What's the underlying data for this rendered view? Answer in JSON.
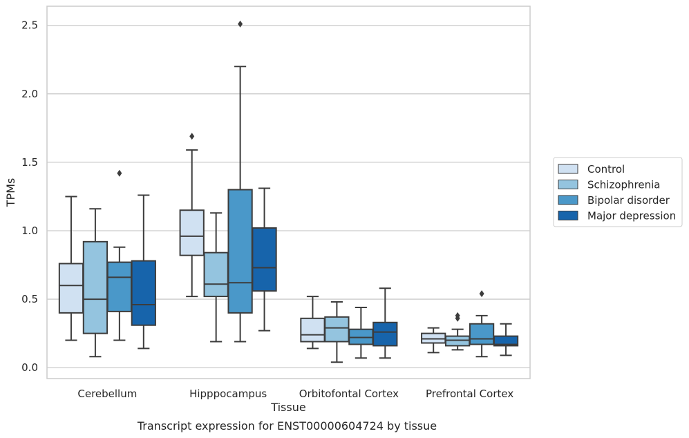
{
  "chart_data": {
    "type": "box",
    "title": "",
    "xlabel": "Tissue",
    "ylabel": "TPMs",
    "caption": "Transcript expression for ENST00000604724 by tissue",
    "ylim": [
      -0.08,
      2.64
    ],
    "yticks": [
      "0.0",
      "0.5",
      "1.0",
      "1.5",
      "2.0",
      "2.5"
    ],
    "ytick_values": [
      0.0,
      0.5,
      1.0,
      1.5,
      2.0,
      2.5
    ],
    "grid": true,
    "legend_position": "right",
    "categories": [
      "Cerebellum",
      "Hipppocampus",
      "Orbitofontal Cortex",
      "Prefrontal Cortex"
    ],
    "colors": [
      "#d0e1f2",
      "#94c4df",
      "#4a98c9",
      "#1764ab"
    ],
    "series": [
      {
        "name": "Control",
        "boxes": [
          {
            "whislo": 0.2,
            "q1": 0.4,
            "med": 0.6,
            "q3": 0.76,
            "whishi": 1.25,
            "fliers": []
          },
          {
            "whislo": 0.52,
            "q1": 0.82,
            "med": 0.96,
            "q3": 1.15,
            "whishi": 1.59,
            "fliers": [
              1.69
            ]
          },
          {
            "whislo": 0.14,
            "q1": 0.19,
            "med": 0.24,
            "q3": 0.36,
            "whishi": 0.52,
            "fliers": []
          },
          {
            "whislo": 0.11,
            "q1": 0.18,
            "med": 0.21,
            "q3": 0.25,
            "whishi": 0.29,
            "fliers": []
          }
        ]
      },
      {
        "name": "Schizophrenia",
        "boxes": [
          {
            "whislo": 0.08,
            "q1": 0.25,
            "med": 0.5,
            "q3": 0.92,
            "whishi": 1.16,
            "fliers": []
          },
          {
            "whislo": 0.19,
            "q1": 0.52,
            "med": 0.61,
            "q3": 0.84,
            "whishi": 1.13,
            "fliers": []
          },
          {
            "whislo": 0.04,
            "q1": 0.19,
            "med": 0.29,
            "q3": 0.37,
            "whishi": 0.48,
            "fliers": []
          },
          {
            "whislo": 0.13,
            "q1": 0.16,
            "med": 0.2,
            "q3": 0.23,
            "whishi": 0.28,
            "fliers": [
              0.36,
              0.38
            ]
          }
        ]
      },
      {
        "name": "Bipolar disorder",
        "boxes": [
          {
            "whislo": 0.2,
            "q1": 0.41,
            "med": 0.66,
            "q3": 0.77,
            "whishi": 0.88,
            "fliers": [
              1.42
            ]
          },
          {
            "whislo": 0.19,
            "q1": 0.4,
            "med": 0.62,
            "q3": 1.3,
            "whishi": 2.2,
            "fliers": [
              2.51
            ]
          },
          {
            "whislo": 0.07,
            "q1": 0.17,
            "med": 0.22,
            "q3": 0.28,
            "whishi": 0.44,
            "fliers": []
          },
          {
            "whislo": 0.08,
            "q1": 0.17,
            "med": 0.21,
            "q3": 0.32,
            "whishi": 0.38,
            "fliers": [
              0.54
            ]
          }
        ]
      },
      {
        "name": "Major depression",
        "boxes": [
          {
            "whislo": 0.14,
            "q1": 0.31,
            "med": 0.46,
            "q3": 0.78,
            "whishi": 1.26,
            "fliers": []
          },
          {
            "whislo": 0.27,
            "q1": 0.56,
            "med": 0.73,
            "q3": 1.02,
            "whishi": 1.31,
            "fliers": []
          },
          {
            "whislo": 0.07,
            "q1": 0.16,
            "med": 0.26,
            "q3": 0.33,
            "whishi": 0.58,
            "fliers": []
          },
          {
            "whislo": 0.09,
            "q1": 0.16,
            "med": 0.17,
            "q3": 0.23,
            "whishi": 0.32,
            "fliers": []
          }
        ]
      }
    ]
  }
}
